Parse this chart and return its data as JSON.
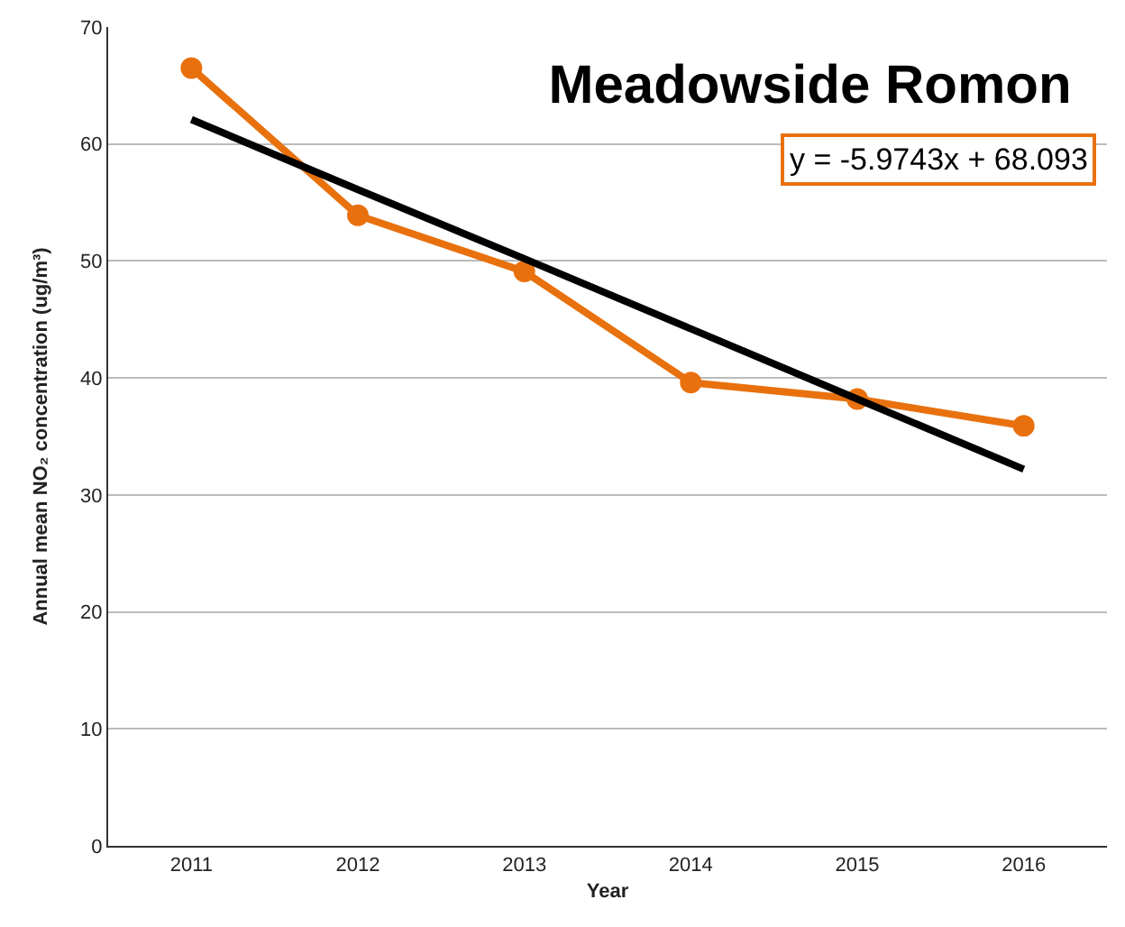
{
  "chart_data": {
    "type": "line",
    "title": "Meadowside Romon",
    "xlabel": "Year",
    "ylabel": "Annual mean NO₂ concentration (ug/m³)",
    "categories": [
      "2011",
      "2012",
      "2013",
      "2014",
      "2015",
      "2016"
    ],
    "series": [
      {
        "color": "#e8710e",
        "values": [
          66.5,
          53.9,
          49.1,
          39.6,
          38.2,
          35.9
        ],
        "marker": "circle"
      },
      {
        "type": "line",
        "color": "#000000",
        "values": [
          62.1,
          56.1,
          50.2,
          44.2,
          38.2,
          32.2
        ],
        "marker": "none"
      }
    ],
    "annotations": [
      "y = -5.9743x + 68.093"
    ],
    "ylim": [
      0,
      70
    ],
    "yticks": [
      0,
      10,
      20,
      30,
      40,
      50,
      60,
      70
    ],
    "grid": "y"
  }
}
